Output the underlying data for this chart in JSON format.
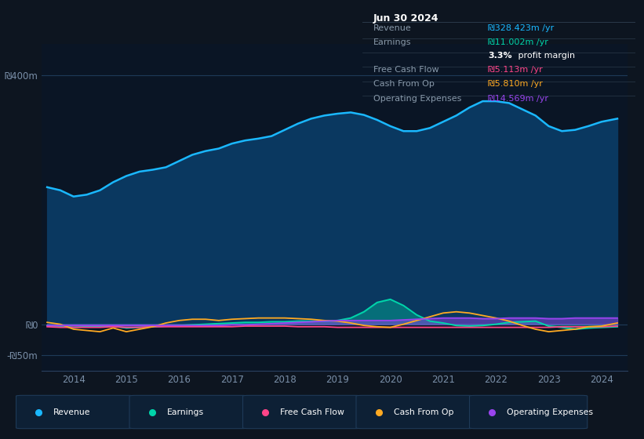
{
  "background_color": "#0d1520",
  "plot_bg_color": "#0a1525",
  "grid_color": "#1a3050",
  "years_x": [
    2013.5,
    2013.75,
    2014.0,
    2014.25,
    2014.5,
    2014.75,
    2015.0,
    2015.25,
    2015.5,
    2015.75,
    2016.0,
    2016.25,
    2016.5,
    2016.75,
    2017.0,
    2017.25,
    2017.5,
    2017.75,
    2018.0,
    2018.25,
    2018.5,
    2018.75,
    2019.0,
    2019.25,
    2019.5,
    2019.75,
    2020.0,
    2020.25,
    2020.5,
    2020.75,
    2021.0,
    2021.25,
    2021.5,
    2021.75,
    2022.0,
    2022.25,
    2022.5,
    2022.75,
    2023.0,
    2023.25,
    2023.5,
    2023.75,
    2024.0,
    2024.3
  ],
  "revenue": [
    220,
    215,
    205,
    208,
    215,
    228,
    238,
    245,
    248,
    252,
    262,
    272,
    278,
    282,
    290,
    295,
    298,
    302,
    312,
    322,
    330,
    335,
    338,
    340,
    336,
    328,
    318,
    310,
    310,
    315,
    325,
    335,
    348,
    358,
    358,
    355,
    345,
    335,
    318,
    310,
    312,
    318,
    325,
    330
  ],
  "earnings": [
    -2,
    -3,
    -5,
    -4,
    -4,
    -3,
    -6,
    -5,
    -4,
    -3,
    -2,
    -1,
    0,
    1,
    2,
    3,
    3,
    4,
    4,
    5,
    5,
    5,
    6,
    10,
    20,
    35,
    40,
    30,
    15,
    5,
    2,
    -2,
    -3,
    -2,
    0,
    3,
    4,
    5,
    -3,
    -5,
    -8,
    -6,
    -5,
    -4
  ],
  "free_cash_flow": [
    -4,
    -5,
    -5,
    -5,
    -5,
    -4,
    -5,
    -5,
    -4,
    -4,
    -4,
    -4,
    -4,
    -4,
    -4,
    -3,
    -3,
    -3,
    -3,
    -4,
    -4,
    -4,
    -5,
    -5,
    -5,
    -5,
    -5,
    -5,
    -5,
    -5,
    -5,
    -5,
    -5,
    -5,
    -5,
    -5,
    -5,
    -5,
    -5,
    -4,
    -4,
    -4,
    -4,
    -3
  ],
  "cash_from_op": [
    3,
    0,
    -8,
    -10,
    -12,
    -6,
    -12,
    -8,
    -4,
    2,
    6,
    8,
    8,
    6,
    8,
    9,
    10,
    10,
    10,
    9,
    8,
    6,
    5,
    2,
    -2,
    -4,
    -5,
    0,
    6,
    12,
    18,
    20,
    18,
    14,
    10,
    5,
    -2,
    -8,
    -12,
    -10,
    -8,
    -4,
    -3,
    2
  ],
  "operating_expenses": [
    -2,
    -2,
    -2,
    -2,
    -2,
    -2,
    -2,
    -2,
    -2,
    -2,
    -2,
    -2,
    -2,
    -2,
    -1,
    -1,
    0,
    1,
    2,
    3,
    4,
    5,
    6,
    6,
    6,
    6,
    6,
    7,
    8,
    9,
    10,
    10,
    10,
    9,
    9,
    10,
    10,
    10,
    9,
    9,
    10,
    10,
    10,
    10
  ],
  "revenue_color": "#1ab8ff",
  "earnings_color": "#00d4aa",
  "free_cash_flow_color": "#ff4488",
  "cash_from_op_color": "#ffaa22",
  "operating_expenses_color": "#9944ee",
  "ylim": [
    -75,
    450
  ],
  "xlim": [
    2013.4,
    2024.5
  ],
  "yticks": [
    400,
    0,
    -50
  ],
  "ytick_labels": [
    "₪400m",
    "₪0",
    "-₪50m"
  ],
  "xticks": [
    2014,
    2015,
    2016,
    2017,
    2018,
    2019,
    2020,
    2021,
    2022,
    2023,
    2024
  ],
  "tooltip_title": "Jun 30 2024",
  "tooltip_rows": [
    {
      "label": "Revenue",
      "value": "₪328.423m /yr",
      "value_color": "#1ab8ff"
    },
    {
      "label": "Earnings",
      "value": "₪11.002m /yr",
      "value_color": "#00d4aa"
    },
    {
      "label": "",
      "value": "profit margin",
      "bold_val": "3.3%",
      "value_color": "#ffffff"
    },
    {
      "label": "Free Cash Flow",
      "value": "₪5.113m /yr",
      "value_color": "#ff4488"
    },
    {
      "label": "Cash From Op",
      "value": "₪5.810m /yr",
      "value_color": "#ffaa22"
    },
    {
      "label": "Operating Expenses",
      "value": "₪14.569m /yr",
      "value_color": "#9944ee"
    }
  ],
  "legend_items": [
    {
      "label": "Revenue",
      "color": "#1ab8ff"
    },
    {
      "label": "Earnings",
      "color": "#00d4aa"
    },
    {
      "label": "Free Cash Flow",
      "color": "#ff4488"
    },
    {
      "label": "Cash From Op",
      "color": "#ffaa22"
    },
    {
      "label": "Operating Expenses",
      "color": "#9944ee"
    }
  ]
}
